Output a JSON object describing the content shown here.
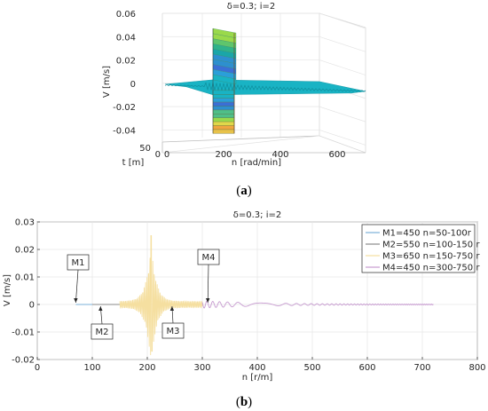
{
  "chart_data": [
    {
      "panel": "a",
      "type": "surface",
      "title": "δ=0.3; i=2",
      "xlabel": "n [rad/min]",
      "ylabel": "t [m]",
      "zlabel": "V [m/s]",
      "xticks": [
        "0",
        "200",
        "400",
        "600"
      ],
      "yticks": [
        "0",
        "50"
      ],
      "zticks": [
        "0.06",
        "0.04",
        "0.02",
        "0",
        "-0.02",
        "-0.04"
      ],
      "xlim": [
        0,
        700
      ],
      "zlim": [
        -0.045,
        0.06
      ],
      "grid": true,
      "burst_x": [
        190,
        260
      ],
      "burst_z": [
        -0.043,
        0.047
      ]
    },
    {
      "panel": "b",
      "type": "line",
      "title": "δ=0.3; i=2",
      "xlabel": "n [r/m]",
      "ylabel": "V [m/s]",
      "xticks": [
        "0",
        "100",
        "200",
        "300",
        "400",
        "500",
        "600",
        "700",
        "800"
      ],
      "yticks": [
        "0.03",
        "0.02",
        "0.01",
        "0",
        "-0.01",
        "-0.02"
      ],
      "xlim": [
        0,
        800
      ],
      "ylim": [
        -0.02,
        0.03
      ],
      "grid": true,
      "legend_position": "top-right",
      "series": [
        {
          "name": "M1=450 n=50-100r",
          "color": "#7bb0d9",
          "x_range": [
            50,
            100
          ]
        },
        {
          "name": "M2=550 n=100-150 r",
          "color": "#8a8a8a",
          "x_range": [
            100,
            150
          ]
        },
        {
          "name": "M3=650 n=150-750 r",
          "color": "#f5dfa0",
          "x_range": [
            150,
            300
          ],
          "peak": 0.025,
          "trough": -0.017,
          "peak_x": 207
        },
        {
          "name": "M4=450 n=300-750 r",
          "color": "#c79bd0",
          "x_range": [
            300,
            720
          ],
          "amp_start": 0.0012
        }
      ],
      "annotations": [
        {
          "label": "M1",
          "x": 70,
          "y": 0
        },
        {
          "label": "M2",
          "x": 115,
          "y": 0
        },
        {
          "label": "M3",
          "x": 245,
          "y": 0
        },
        {
          "label": "M4",
          "x": 310,
          "y": 0
        }
      ]
    }
  ],
  "captions": {
    "a": {
      "open": "(",
      "letter": "a",
      "close": ")"
    },
    "b": {
      "open": "(",
      "letter": "b",
      "close": ")"
    }
  }
}
